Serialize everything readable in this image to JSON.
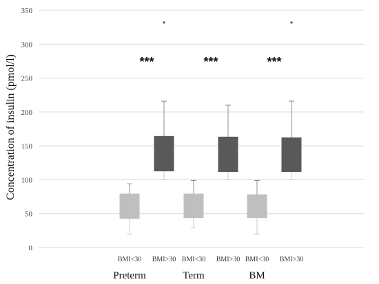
{
  "chart_data": {
    "type": "boxplot",
    "ylabel": "Concentration of insulin (pmol/l)",
    "ylim": [
      0,
      350
    ],
    "yticks": [
      0,
      50,
      100,
      150,
      200,
      250,
      300,
      350
    ],
    "grid": true,
    "groups": [
      {
        "label": "Preterm",
        "boxes": [
          {
            "category": "BMI<30",
            "min": 20,
            "q1": 43,
            "q3": 79,
            "max": 94,
            "color": "#bfbfbf",
            "outliers": []
          },
          {
            "category": "BMI>30",
            "min": 100,
            "q1": 113,
            "q3": 164,
            "max": 216,
            "color": "#595959",
            "outliers": [
              332
            ]
          }
        ],
        "significance": "***"
      },
      {
        "label": "Term",
        "boxes": [
          {
            "category": "BMI<30",
            "min": 29,
            "q1": 44,
            "q3": 79,
            "max": 99,
            "color": "#bfbfbf",
            "outliers": []
          },
          {
            "category": "BMI>30",
            "min": 100,
            "q1": 112,
            "q3": 163,
            "max": 210,
            "color": "#595959",
            "outliers": []
          }
        ],
        "significance": "***"
      },
      {
        "label": "BM",
        "boxes": [
          {
            "category": "BMI<30",
            "min": 20,
            "q1": 44,
            "q3": 78,
            "max": 99,
            "color": "#bfbfbf",
            "outliers": []
          },
          {
            "category": "BMI>30",
            "min": 100,
            "q1": 112,
            "q3": 162,
            "max": 216,
            "color": "#595959",
            "outliers": [
              332
            ]
          }
        ],
        "significance": "***"
      }
    ]
  }
}
